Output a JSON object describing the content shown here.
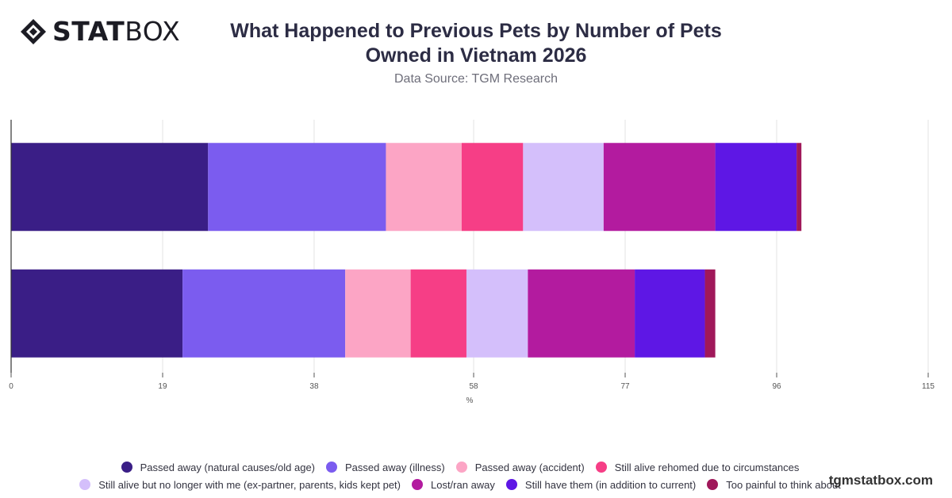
{
  "brand": {
    "logo_bold": "STAT",
    "logo_regular": "BOX",
    "watermark": "tgmstatbox.com"
  },
  "chart_data": {
    "type": "bar",
    "orientation": "horizontal",
    "stacked": true,
    "title": "What Happened to Previous Pets by Number of Pets Owned in Vietnam 2026",
    "subtitle": "Data Source: TGM Research",
    "xlabel": "%",
    "ylabel": "",
    "xlim": [
      0,
      115
    ],
    "xticks": [
      0,
      19,
      38,
      58,
      77,
      96,
      115
    ],
    "categories": [
      "",
      ""
    ],
    "grid": true,
    "legend_position": "bottom",
    "series": [
      {
        "name": "Passed away (natural causes/old age)",
        "color": "#3a1e86",
        "values": [
          24.7,
          21.5
        ]
      },
      {
        "name": "Passed away (illness)",
        "color": "#7b5cef",
        "values": [
          22.3,
          20.4
        ]
      },
      {
        "name": "Passed away (accident)",
        "color": "#fca5c5",
        "values": [
          9.5,
          8.2
        ]
      },
      {
        "name": "Still alive rehomed due to circumstances",
        "color": "#f63e86",
        "values": [
          7.7,
          7.0
        ]
      },
      {
        "name": "Still alive but no longer with me (ex-partner, parents, kids kept pet)",
        "color": "#d4bffb",
        "values": [
          10.1,
          7.7
        ]
      },
      {
        "name": "Lost/ran away",
        "color": "#b31b9f",
        "values": [
          14.0,
          13.4
        ]
      },
      {
        "name": "Still have them (in addition to current)",
        "color": "#5e17e5",
        "values": [
          10.2,
          8.8
        ]
      },
      {
        "name": "Too painful to think about",
        "color": "#a0185a",
        "values": [
          0.6,
          1.3
        ]
      }
    ]
  }
}
